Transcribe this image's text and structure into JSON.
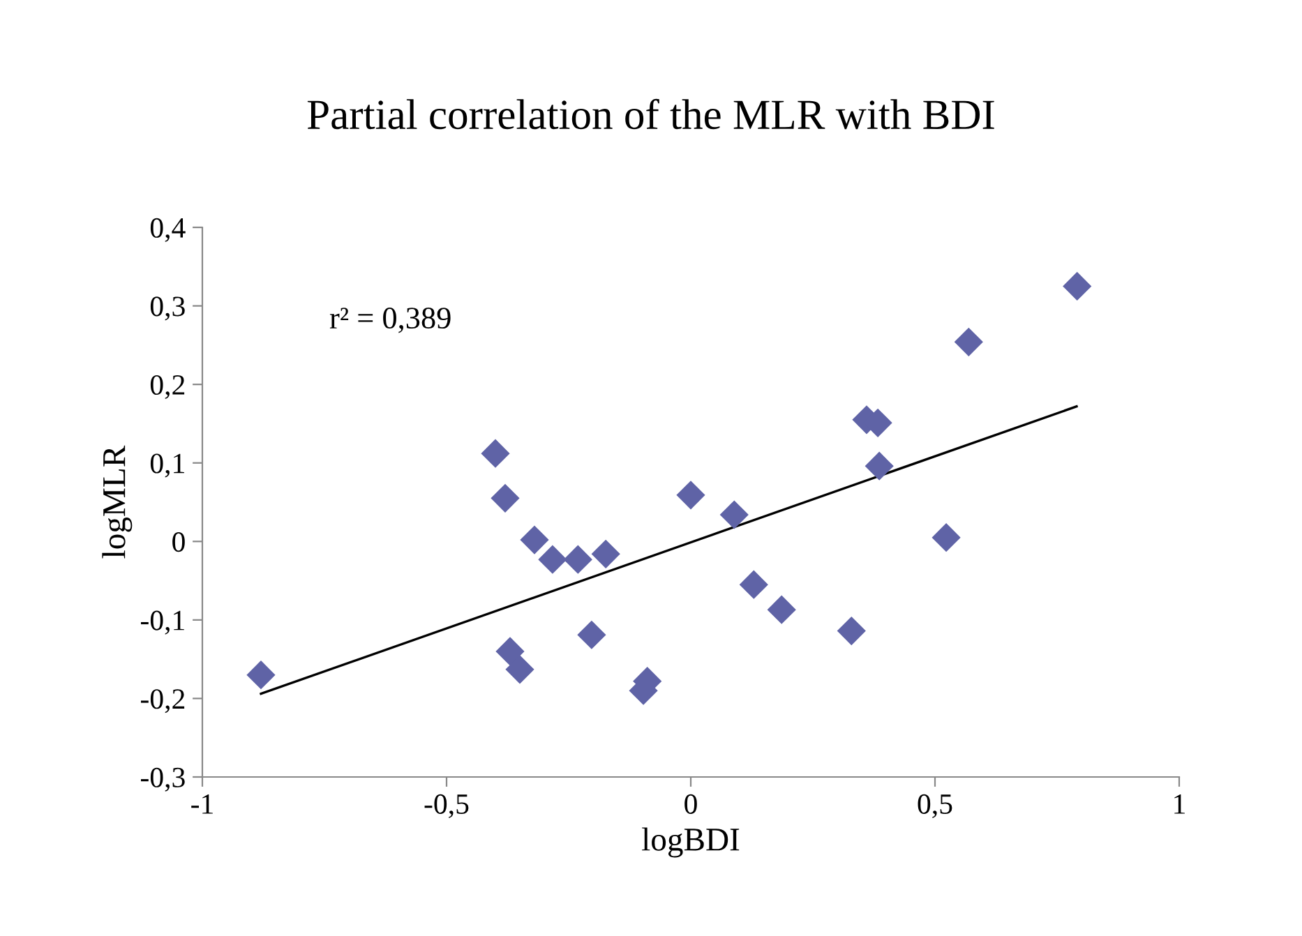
{
  "chart_data": {
    "type": "scatter",
    "title": "Partial correlation of the MLR with BDI",
    "xlabel": "logBDI",
    "ylabel": "logMLR",
    "annotations": [
      "r² = 0,389"
    ],
    "series": [
      {
        "color": "#5f63a6",
        "marker": "diamond",
        "x": [
          -0.88,
          -0.4,
          -0.38,
          -0.32,
          -0.37,
          -0.35,
          -0.283,
          -0.231,
          -0.174,
          -0.203,
          -0.097,
          -0.089,
          0.0,
          0.089,
          0.129,
          0.186,
          0.329,
          0.36,
          0.383,
          0.386,
          0.523,
          0.569,
          0.791
        ],
        "values": [
          -0.17,
          0.112,
          0.055,
          0.002,
          -0.14,
          -0.163,
          -0.023,
          -0.023,
          -0.016,
          -0.119,
          -0.19,
          -0.178,
          0.059,
          0.034,
          -0.055,
          -0.087,
          -0.114,
          0.155,
          0.151,
          0.096,
          0.005,
          0.254,
          0.325
        ]
      },
      {
        "type": "line",
        "color": "#000000",
        "marker": "none",
        "x": [
          -0.88,
          0.79
        ],
        "values": [
          -0.194,
          0.172
        ]
      }
    ],
    "xlim": [
      -1,
      1
    ],
    "xticks": [
      -1,
      {
        "value": -0.5,
        "label": "-0,5"
      },
      0,
      {
        "value": 0.5,
        "label": "0,5"
      },
      1
    ],
    "ylim": [
      -0.3,
      0.4
    ],
    "yticks": [
      {
        "value": -0.3,
        "label": "-0,3"
      },
      {
        "value": -0.2,
        "label": "-0,2"
      },
      {
        "value": -0.1,
        "label": "-0,1"
      },
      0,
      {
        "value": 0.1,
        "label": "0,1"
      },
      {
        "value": 0.2,
        "label": "0,2"
      },
      {
        "value": 0.3,
        "label": "0,3"
      },
      {
        "value": 0.4,
        "label": "0,4"
      }
    ],
    "grid": false,
    "legend": false
  }
}
